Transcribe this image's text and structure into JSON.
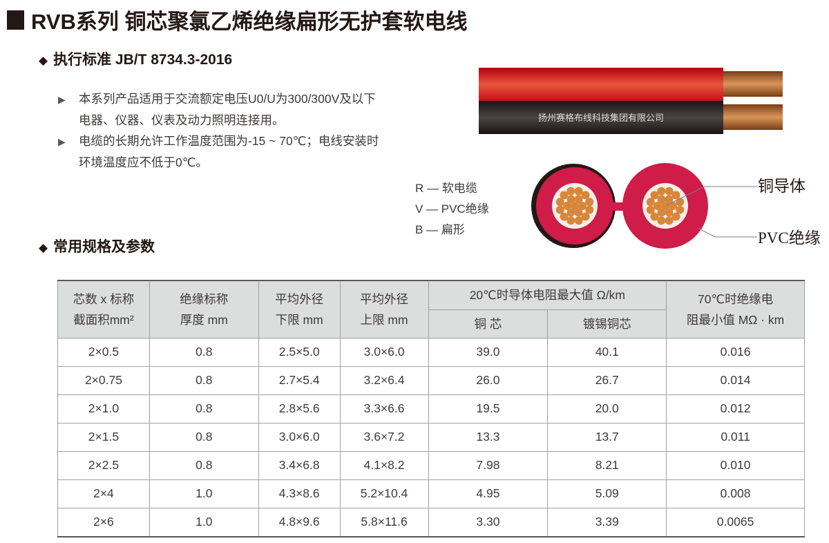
{
  "title": "RVB系列 铜芯聚氯乙烯绝缘扁形无护套软电线",
  "standard": "执行标准 JB/T 8734.3-2016",
  "paragraphs": [
    {
      "line1": "本系列产品适用于交流额定电压U0/U为300/300V及以下",
      "line2": "电器、仪器、仪表及动力照明连接用。"
    },
    {
      "line1": "电缆的长期允许工作温度范围为-15 ~ 70℃；电线安装时",
      "line2": "环境温度应不低于0℃。"
    }
  ],
  "cable_print": "扬州赛格布线科技集团有限公司",
  "legend": [
    "R — 软电缆",
    "V — PVC绝缘",
    "B — 扁形"
  ],
  "callouts": {
    "conductor": "铜导体",
    "insulation": "PVC绝缘"
  },
  "colors": {
    "red": "#d9231f",
    "black": "#231815",
    "pvc": "#cf1c48",
    "copper": "#d8873a"
  },
  "section2": "常用规格及参数",
  "table": {
    "headers": {
      "c1": [
        "芯数 x 标称",
        "截面积mm²"
      ],
      "c2": [
        "绝缘标称",
        "厚度 mm"
      ],
      "c3": [
        "平均外径",
        "下限 mm"
      ],
      "c4": [
        "平均外径",
        "上限 mm"
      ],
      "group": "20℃时导体电阻最大值 Ω/km",
      "c5": "铜 芯",
      "c6": "镀锡铜芯",
      "c7": [
        "70℃时绝缘电",
        "阻最小值 MΩ · km"
      ]
    },
    "rows": [
      [
        "2×0.5",
        "0.8",
        "2.5×5.0",
        "3.0×6.0",
        "39.0",
        "40.1",
        "0.016"
      ],
      [
        "2×0.75",
        "0.8",
        "2.7×5.4",
        "3.2×6.4",
        "26.0",
        "26.7",
        "0.014"
      ],
      [
        "2×1.0",
        "0.8",
        "2.8×5.6",
        "3.3×6.6",
        "19.5",
        "20.0",
        "0.012"
      ],
      [
        "2×1.5",
        "0.8",
        "3.0×6.0",
        "3.6×7.2",
        "13.3",
        "13.7",
        "0.011"
      ],
      [
        "2×2.5",
        "0.8",
        "3.4×6.8",
        "4.1×8.2",
        "7.98",
        "8.21",
        "0.010"
      ],
      [
        "2×4",
        "1.0",
        "4.3×8.6",
        "5.2×10.4",
        "4.95",
        "5.09",
        "0.008"
      ],
      [
        "2×6",
        "1.0",
        "4.8×9.6",
        "5.8×11.6",
        "3.30",
        "3.39",
        "0.0065"
      ]
    ]
  }
}
